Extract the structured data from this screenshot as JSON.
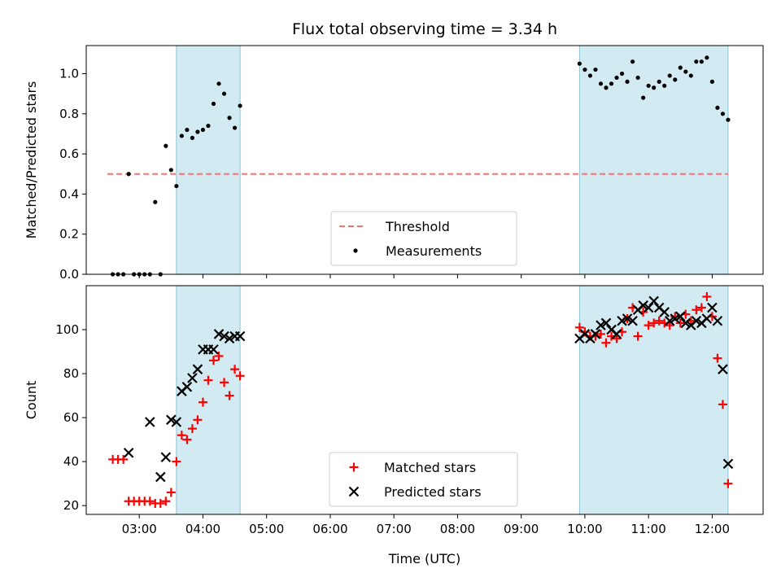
{
  "chart_data": [
    {
      "type": "scatter",
      "title": "Flux total observing time = 3.34 h",
      "ylabel": "Matched/Predicted stars",
      "xlabel": "",
      "xlim": [
        "02:10",
        "12:48"
      ],
      "ylim": [
        0,
        1.14
      ],
      "yticks": [
        0.0,
        0.2,
        0.4,
        0.6,
        0.8,
        1.0
      ],
      "ytick_labels": [
        "0.0",
        "0.2",
        "0.4",
        "0.6",
        "0.8",
        "1.0"
      ],
      "xticks": [
        "03:00",
        "04:00",
        "05:00",
        "06:00",
        "07:00",
        "08:00",
        "09:00",
        "10:00",
        "11:00",
        "12:00"
      ],
      "shaded_spans": [
        [
          "03:35",
          "04:35"
        ],
        [
          "09:55",
          "12:15"
        ]
      ],
      "shade_color": "#add8e6",
      "threshold": {
        "name": "Threshold",
        "y": 0.5,
        "x": [
          "02:30",
          "12:15"
        ],
        "color": "#ff7070",
        "style": "dashed"
      },
      "legend": {
        "placement": "lower-center",
        "entries": [
          "Threshold",
          "Measurements"
        ]
      },
      "series": [
        {
          "name": "Measurements",
          "color": "#000000",
          "marker": "dot",
          "x": [
            "02:35",
            "02:40",
            "02:45",
            "02:50",
            "02:55",
            "03:00",
            "03:05",
            "03:10",
            "03:15",
            "03:20",
            "03:25",
            "03:30",
            "03:35",
            "03:40",
            "03:45",
            "03:50",
            "03:55",
            "04:00",
            "04:05",
            "04:10",
            "04:15",
            "04:20",
            "04:25",
            "04:30",
            "04:35",
            "09:55",
            "10:00",
            "10:05",
            "10:10",
            "10:15",
            "10:20",
            "10:25",
            "10:30",
            "10:35",
            "10:40",
            "10:45",
            "10:50",
            "10:55",
            "11:00",
            "11:05",
            "11:10",
            "11:15",
            "11:20",
            "11:25",
            "11:30",
            "11:35",
            "11:40",
            "11:45",
            "11:50",
            "11:55",
            "12:00",
            "12:05",
            "12:10",
            "12:15"
          ],
          "y": [
            0.0,
            0.0,
            0.0,
            0.5,
            0.0,
            0.0,
            0.0,
            0.0,
            0.36,
            0.0,
            0.64,
            0.52,
            0.44,
            0.69,
            0.72,
            0.68,
            0.71,
            0.72,
            0.74,
            0.85,
            0.95,
            0.9,
            0.78,
            0.73,
            0.84,
            1.05,
            1.02,
            0.99,
            1.02,
            0.95,
            0.93,
            0.95,
            0.98,
            1.0,
            0.96,
            1.06,
            0.98,
            0.88,
            0.94,
            0.93,
            0.96,
            0.94,
            0.99,
            0.97,
            1.03,
            1.01,
            0.99,
            1.06,
            1.06,
            1.08,
            0.96,
            0.83,
            0.8,
            0.77
          ]
        }
      ]
    },
    {
      "type": "scatter",
      "title": "",
      "ylabel": "Count",
      "xlabel": "Time (UTC)",
      "xlim": [
        "02:10",
        "12:48"
      ],
      "ylim": [
        16,
        120
      ],
      "yticks": [
        20,
        40,
        60,
        80,
        100
      ],
      "ytick_labels": [
        "20",
        "40",
        "60",
        "80",
        "100"
      ],
      "xticks": [
        "03:00",
        "04:00",
        "05:00",
        "06:00",
        "07:00",
        "08:00",
        "09:00",
        "10:00",
        "11:00",
        "12:00"
      ],
      "shaded_spans": [
        [
          "03:35",
          "04:35"
        ],
        [
          "09:55",
          "12:15"
        ]
      ],
      "shade_color": "#add8e6",
      "legend": {
        "placement": "lower-center",
        "entries": [
          "Matched stars",
          "Predicted stars"
        ]
      },
      "series": [
        {
          "name": "Matched stars",
          "color": "#ff0000",
          "marker": "plus",
          "x": [
            "02:35",
            "02:40",
            "02:45",
            "02:50",
            "02:55",
            "03:00",
            "03:05",
            "03:10",
            "03:15",
            "03:20",
            "03:25",
            "03:30",
            "03:35",
            "03:40",
            "03:45",
            "03:50",
            "03:55",
            "04:00",
            "04:05",
            "04:10",
            "04:15",
            "04:20",
            "04:25",
            "04:30",
            "04:35",
            "09:55",
            "10:00",
            "10:05",
            "10:10",
            "10:15",
            "10:20",
            "10:25",
            "10:30",
            "10:35",
            "10:40",
            "10:45",
            "10:50",
            "10:55",
            "11:00",
            "11:05",
            "11:10",
            "11:15",
            "11:20",
            "11:25",
            "11:30",
            "11:35",
            "11:40",
            "11:45",
            "11:50",
            "11:55",
            "12:00",
            "12:05",
            "12:10",
            "12:15"
          ],
          "y": [
            41,
            41,
            41,
            22,
            22,
            22,
            22,
            22,
            21,
            21,
            22,
            26,
            40,
            52,
            50,
            55,
            59,
            67,
            77,
            86,
            88,
            76,
            70,
            82,
            79,
            101,
            99,
            97,
            97,
            98,
            94,
            97,
            96,
            99,
            105,
            110,
            97,
            108,
            102,
            103,
            104,
            103,
            102,
            106,
            103,
            107,
            104,
            109,
            110,
            115,
            106,
            87,
            66,
            30
          ]
        },
        {
          "name": "Predicted stars",
          "color": "#000000",
          "marker": "x",
          "x": [
            "02:50",
            "03:10",
            "03:20",
            "03:25",
            "03:30",
            "03:35",
            "03:40",
            "03:45",
            "03:50",
            "03:55",
            "04:00",
            "04:05",
            "04:10",
            "04:15",
            "04:20",
            "04:25",
            "04:30",
            "04:35",
            "09:55",
            "10:00",
            "10:05",
            "10:10",
            "10:15",
            "10:20",
            "10:25",
            "10:30",
            "10:35",
            "10:40",
            "10:45",
            "10:50",
            "10:55",
            "11:00",
            "11:05",
            "11:10",
            "11:15",
            "11:20",
            "11:25",
            "11:30",
            "11:35",
            "11:40",
            "11:45",
            "11:50",
            "11:55",
            "12:00",
            "12:05",
            "12:10",
            "12:15"
          ],
          "y": [
            44,
            58,
            33,
            42,
            59,
            58,
            72,
            74,
            78,
            82,
            91,
            91,
            91,
            98,
            97,
            96,
            97,
            97,
            96,
            98,
            96,
            98,
            102,
            103,
            100,
            98,
            104,
            105,
            104,
            109,
            111,
            110,
            113,
            110,
            108,
            104,
            105,
            106,
            103,
            102,
            104,
            103,
            105,
            110,
            104,
            82,
            39
          ]
        }
      ]
    }
  ]
}
